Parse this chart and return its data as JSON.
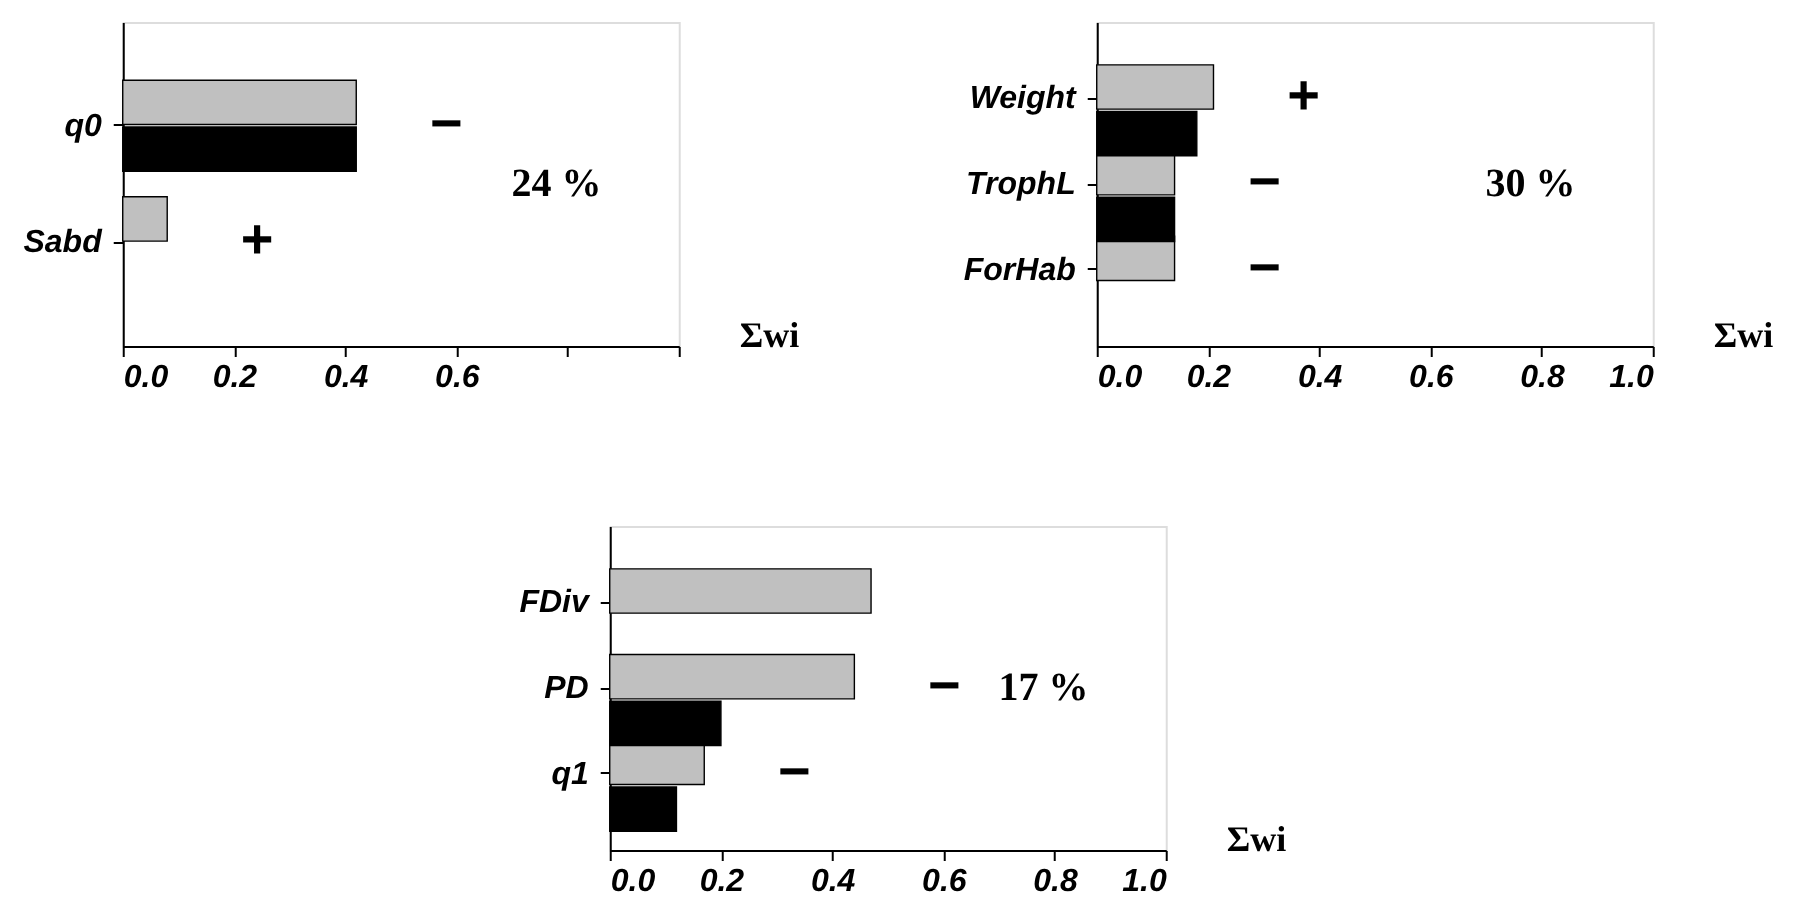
{
  "chart_data": [
    {
      "type": "bar",
      "orientation": "horizontal",
      "categories": [
        "q0",
        "Sabd"
      ],
      "series": [
        {
          "color": "#c0c0c0",
          "values": [
            0.42,
            0.08
          ]
        },
        {
          "color": "#000000",
          "values": [
            0.42,
            null
          ]
        }
      ],
      "xlim": [
        0,
        1
      ],
      "xticks": [
        {
          "value": 0,
          "label": "0.0"
        },
        {
          "value": 0.2,
          "label": "0.2"
        },
        {
          "value": 0.4,
          "label": "0.4"
        },
        {
          "value": 0.6,
          "label": "0.6"
        },
        {
          "value": 0.8,
          "label": null
        },
        {
          "value": 1,
          "label": null
        }
      ],
      "xlabel": "Σwi",
      "grid": false,
      "legend": false,
      "annotations": [
        "−",
        "+",
        "24 %"
      ]
    },
    {
      "type": "bar",
      "orientation": "horizontal",
      "categories": [
        "Weight",
        "TrophL",
        "ForHab"
      ],
      "series": [
        {
          "color": "#c0c0c0",
          "values": [
            0.21,
            0.14,
            0.14
          ]
        },
        {
          "color": "#000000",
          "values": [
            0.18,
            0.14,
            null
          ]
        }
      ],
      "xlim": [
        0,
        1
      ],
      "xticks": [
        {
          "value": 0,
          "label": "0.0"
        },
        {
          "value": 0.2,
          "label": "0.2"
        },
        {
          "value": 0.4,
          "label": "0.4"
        },
        {
          "value": 0.6,
          "label": "0.6"
        },
        {
          "value": 0.8,
          "label": "0.8"
        },
        {
          "value": 1,
          "label": "1.0"
        }
      ],
      "xlabel": "Σwi",
      "grid": false,
      "legend": false,
      "annotations": [
        "+",
        "−",
        "−",
        "30 %"
      ]
    },
    {
      "type": "bar",
      "orientation": "horizontal",
      "categories": [
        "FDiv",
        "PD",
        "q1"
      ],
      "series": [
        {
          "color": "#c0c0c0",
          "values": [
            0.47,
            0.44,
            0.17
          ]
        },
        {
          "color": "#000000",
          "values": [
            null,
            0.2,
            0.12
          ]
        }
      ],
      "xlim": [
        0,
        1
      ],
      "xticks": [
        {
          "value": 0,
          "label": "0.0"
        },
        {
          "value": 0.2,
          "label": "0.2"
        },
        {
          "value": 0.4,
          "label": "0.4"
        },
        {
          "value": 0.6,
          "label": "0.6"
        },
        {
          "value": 0.8,
          "label": "0.8"
        },
        {
          "value": 1,
          "label": "1.0"
        }
      ],
      "xlabel": "Σwi",
      "grid": false,
      "legend": false,
      "annotations": [
        "−",
        "−",
        "17 %"
      ]
    }
  ]
}
